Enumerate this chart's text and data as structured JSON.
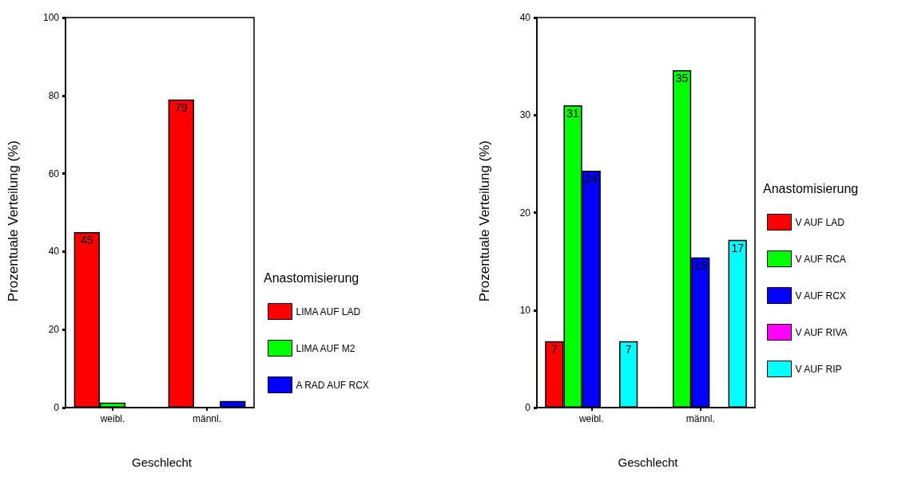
{
  "chart_data": [
    {
      "type": "bar",
      "xlabel": "Geschlecht",
      "ylabel": "Prozentuale Verteilung (%)",
      "legend_title": "Anastomisierung",
      "categories": [
        "weibl.",
        "männl."
      ],
      "series": [
        {
          "name": "LIMA AUF LAD",
          "color": "#ff0000",
          "values": [
            45,
            79
          ],
          "value_labels": [
            "45",
            "79"
          ]
        },
        {
          "name": "LIMA AUF M2",
          "color": "#00ff00",
          "values": [
            1.3,
            0
          ],
          "value_labels": [
            null,
            null
          ]
        },
        {
          "name": "A RAD AUF RCX",
          "color": "#0000ff",
          "values": [
            0,
            1.7
          ],
          "value_labels": [
            null,
            null
          ]
        }
      ],
      "ylim": [
        0,
        100
      ],
      "yticks": [
        0,
        20,
        40,
        60,
        80,
        100
      ],
      "grid": false,
      "legend": "right"
    },
    {
      "type": "bar",
      "xlabel": "Geschlecht",
      "ylabel": "Prozentuale Verteilung (%)",
      "legend_title": "Anastomisierung",
      "categories": [
        "weibl.",
        "männl."
      ],
      "series": [
        {
          "name": "V AUF LAD",
          "color": "#ff0000",
          "values": [
            6.8,
            0
          ],
          "value_labels": [
            "7",
            null
          ]
        },
        {
          "name": "V AUF RCA",
          "color": "#00ff00",
          "values": [
            31,
            34.6
          ],
          "value_labels": [
            "31",
            "35"
          ]
        },
        {
          "name": "V AUF RCX",
          "color": "#0000ff",
          "values": [
            24.3,
            15.4
          ],
          "value_labels": [
            "24",
            "15"
          ]
        },
        {
          "name": "V AUF RIVA",
          "color": "#ff00ff",
          "values": [
            0,
            0
          ],
          "value_labels": [
            null,
            null
          ]
        },
        {
          "name": "V AUF RIP",
          "color": "#00ffff",
          "values": [
            6.8,
            17.2
          ],
          "value_labels": [
            "7",
            "17"
          ]
        }
      ],
      "ylim": [
        0,
        40
      ],
      "yticks": [
        0,
        10,
        20,
        30,
        40
      ],
      "grid": false,
      "legend": "right"
    }
  ]
}
